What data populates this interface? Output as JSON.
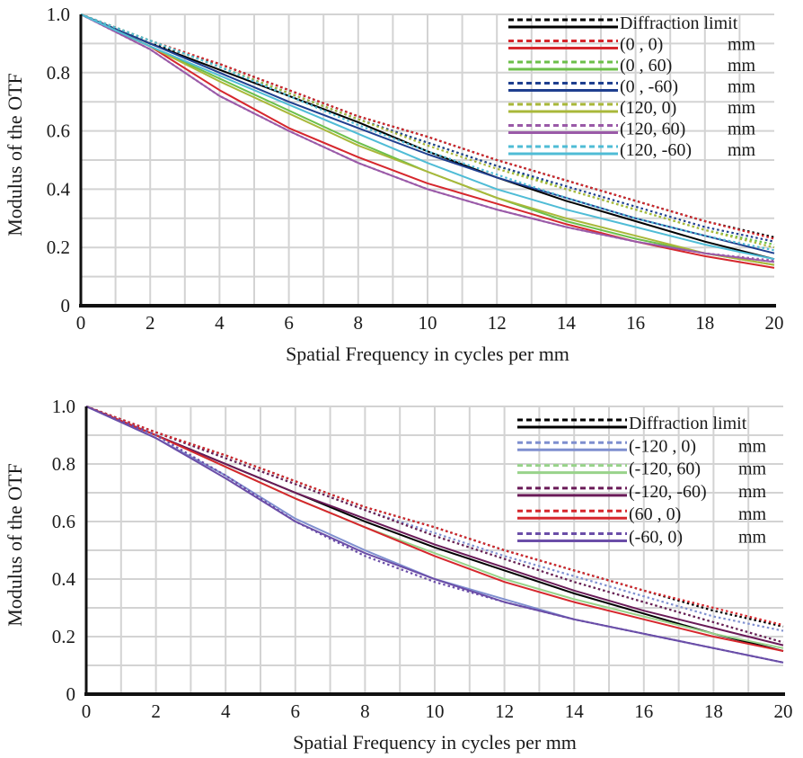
{
  "chart_data": [
    {
      "type": "line",
      "xlabel": "Spatial Frequency in cycles per mm",
      "ylabel": "Modulus of the OTF",
      "xlim": [
        0,
        20
      ],
      "ylim": [
        0,
        1.0
      ],
      "xticks": [
        "0",
        "2",
        "4",
        "6",
        "8",
        "10",
        "12",
        "14",
        "16",
        "18",
        "20"
      ],
      "yticks": [
        "0",
        "0.2",
        "0.4",
        "0.6",
        "0.8",
        "1.0"
      ],
      "grid": true,
      "legend_position": "top-right",
      "legend": [
        {
          "label": "Diffraction limit",
          "unit": "",
          "color": "#000000"
        },
        {
          "label": "(0 ,  0)",
          "unit": "mm",
          "color": "#d6272d"
        },
        {
          "label": "(0 ,  60)",
          "unit": "mm",
          "color": "#6cbf4a"
        },
        {
          "label": "(0 , -60)",
          "unit": "mm",
          "color": "#1f3f8f"
        },
        {
          "label": "(120, 0)",
          "unit": "mm",
          "color": "#a9b83a"
        },
        {
          "label": "(120, 60)",
          "unit": "mm",
          "color": "#9a5aa8"
        },
        {
          "label": "(120, -60)",
          "unit": "mm",
          "color": "#4fbcd6"
        }
      ],
      "x": [
        0,
        2,
        4,
        6,
        8,
        10,
        12,
        14,
        16,
        18,
        20
      ],
      "series": [
        {
          "name": "Diffraction limit",
          "style": "dotted",
          "color": "#000000",
          "values": [
            1.0,
            0.9,
            0.83,
            0.74,
            0.65,
            0.58,
            0.5,
            0.43,
            0.36,
            0.29,
            0.235
          ]
        },
        {
          "name": "Diffraction limit",
          "style": "solid",
          "color": "#000000",
          "values": [
            1.0,
            0.9,
            0.81,
            0.72,
            0.63,
            0.53,
            0.44,
            0.36,
            0.29,
            0.22,
            0.16
          ]
        },
        {
          "name": "(0 ,  0)",
          "style": "dotted",
          "color": "#d6272d",
          "values": [
            1.0,
            0.91,
            0.83,
            0.74,
            0.65,
            0.58,
            0.5,
            0.43,
            0.36,
            0.29,
            0.23
          ]
        },
        {
          "name": "(0 ,  0)",
          "style": "solid",
          "color": "#d6272d",
          "values": [
            1.0,
            0.89,
            0.74,
            0.61,
            0.51,
            0.42,
            0.35,
            0.28,
            0.22,
            0.17,
            0.13
          ]
        },
        {
          "name": "(0 ,  60)",
          "style": "dotted",
          "color": "#6cbf4a",
          "values": [
            1.0,
            0.91,
            0.82,
            0.73,
            0.64,
            0.56,
            0.48,
            0.4,
            0.33,
            0.26,
            0.21
          ]
        },
        {
          "name": "(0 ,  60)",
          "style": "solid",
          "color": "#6cbf4a",
          "values": [
            1.0,
            0.89,
            0.78,
            0.67,
            0.56,
            0.46,
            0.37,
            0.29,
            0.23,
            0.18,
            0.14
          ]
        },
        {
          "name": "(0 , -60)",
          "style": "dotted",
          "color": "#1f3f8f",
          "values": [
            1.0,
            0.91,
            0.82,
            0.73,
            0.64,
            0.56,
            0.48,
            0.41,
            0.34,
            0.27,
            0.22
          ]
        },
        {
          "name": "(0 , -60)",
          "style": "solid",
          "color": "#1f3f8f",
          "values": [
            1.0,
            0.9,
            0.8,
            0.7,
            0.61,
            0.52,
            0.44,
            0.37,
            0.3,
            0.24,
            0.18
          ]
        },
        {
          "name": "(120, 0)",
          "style": "dotted",
          "color": "#a9b83a",
          "values": [
            1.0,
            0.91,
            0.82,
            0.73,
            0.64,
            0.55,
            0.47,
            0.4,
            0.33,
            0.26,
            0.2
          ]
        },
        {
          "name": "(120, 0)",
          "style": "solid",
          "color": "#a9b83a",
          "values": [
            1.0,
            0.89,
            0.77,
            0.66,
            0.55,
            0.46,
            0.37,
            0.3,
            0.24,
            0.18,
            0.14
          ]
        },
        {
          "name": "(120, 60)",
          "style": "dotted",
          "color": "#9a5aa8",
          "values": [
            1.0,
            0.88,
            0.72,
            0.6,
            0.49,
            0.4,
            0.33,
            0.27,
            0.22,
            0.18,
            0.155
          ]
        },
        {
          "name": "(120, 60)",
          "style": "solid",
          "color": "#9a5aa8",
          "values": [
            1.0,
            0.88,
            0.72,
            0.6,
            0.49,
            0.4,
            0.33,
            0.27,
            0.22,
            0.18,
            0.15
          ]
        },
        {
          "name": "(120, -60)",
          "style": "dotted",
          "color": "#4fbcd6",
          "values": [
            1.0,
            0.91,
            0.82,
            0.72,
            0.62,
            0.53,
            0.45,
            0.37,
            0.3,
            0.24,
            0.19
          ]
        },
        {
          "name": "(120, -60)",
          "style": "solid",
          "color": "#4fbcd6",
          "values": [
            1.0,
            0.89,
            0.79,
            0.69,
            0.59,
            0.49,
            0.4,
            0.33,
            0.27,
            0.21,
            0.16
          ]
        }
      ]
    },
    {
      "type": "line",
      "xlabel": "Spatial Frequency in cycles per mm",
      "ylabel": "Modulus of the OTF",
      "xlim": [
        0,
        20
      ],
      "ylim": [
        0,
        1.0
      ],
      "xticks": [
        "0",
        "2",
        "4",
        "6",
        "8",
        "10",
        "12",
        "14",
        "16",
        "18",
        "20"
      ],
      "yticks": [
        "0",
        "0.2",
        "0.4",
        "0.6",
        "0.8",
        "1.0"
      ],
      "grid": true,
      "legend_position": "top-right",
      "legend": [
        {
          "label": "Diffraction limit",
          "unit": "",
          "color": "#000000"
        },
        {
          "label": "(-120 , 0)",
          "unit": "mm",
          "color": "#7f8fcf"
        },
        {
          "label": "(-120, 60)",
          "unit": "mm",
          "color": "#98d38a"
        },
        {
          "label": "(-120, -60)",
          "unit": "mm",
          "color": "#6a1b58"
        },
        {
          "label": "(60 ,  0)",
          "unit": "mm",
          "color": "#d6272d"
        },
        {
          "label": "(-60,  0)",
          "unit": "mm",
          "color": "#6b4ea8"
        }
      ],
      "x": [
        0,
        2,
        4,
        6,
        8,
        10,
        12,
        14,
        16,
        18,
        20
      ],
      "series": [
        {
          "name": "Diffraction limit",
          "style": "dotted",
          "color": "#000000",
          "values": [
            1.0,
            0.91,
            0.83,
            0.74,
            0.65,
            0.58,
            0.5,
            0.43,
            0.36,
            0.29,
            0.235
          ]
        },
        {
          "name": "Diffraction limit",
          "style": "solid",
          "color": "#000000",
          "values": [
            1.0,
            0.9,
            0.8,
            0.7,
            0.6,
            0.51,
            0.43,
            0.35,
            0.28,
            0.21,
            0.15
          ]
        },
        {
          "name": "(-120 , 0)",
          "style": "dotted",
          "color": "#7f8fcf",
          "values": [
            1.0,
            0.91,
            0.82,
            0.73,
            0.64,
            0.56,
            0.48,
            0.41,
            0.34,
            0.27,
            0.22
          ]
        },
        {
          "name": "(-120 , 0)",
          "style": "solid",
          "color": "#7f8fcf",
          "values": [
            1.0,
            0.89,
            0.76,
            0.61,
            0.5,
            0.4,
            0.33,
            0.26,
            0.21,
            0.16,
            0.11
          ]
        },
        {
          "name": "(-120, 60)",
          "style": "dotted",
          "color": "#98d38a",
          "values": [
            1.0,
            0.91,
            0.82,
            0.73,
            0.64,
            0.55,
            0.47,
            0.39,
            0.32,
            0.25,
            0.18
          ]
        },
        {
          "name": "(-120, 60)",
          "style": "solid",
          "color": "#98d38a",
          "values": [
            1.0,
            0.9,
            0.79,
            0.68,
            0.58,
            0.49,
            0.4,
            0.33,
            0.27,
            0.21,
            0.16
          ]
        },
        {
          "name": "(-120, -60)",
          "style": "dotted",
          "color": "#6a1b58",
          "values": [
            1.0,
            0.91,
            0.82,
            0.73,
            0.64,
            0.55,
            0.47,
            0.39,
            0.32,
            0.25,
            0.18
          ]
        },
        {
          "name": "(-120, -60)",
          "style": "solid",
          "color": "#6a1b58",
          "values": [
            1.0,
            0.9,
            0.8,
            0.7,
            0.61,
            0.52,
            0.44,
            0.36,
            0.29,
            0.23,
            0.17
          ]
        },
        {
          "name": "(60 ,  0)",
          "style": "dotted",
          "color": "#d6272d",
          "values": [
            1.0,
            0.91,
            0.83,
            0.74,
            0.65,
            0.58,
            0.5,
            0.43,
            0.36,
            0.3,
            0.24
          ]
        },
        {
          "name": "(60 ,  0)",
          "style": "solid",
          "color": "#d6272d",
          "values": [
            1.0,
            0.9,
            0.79,
            0.68,
            0.58,
            0.48,
            0.39,
            0.32,
            0.26,
            0.2,
            0.15
          ]
        },
        {
          "name": "(-60,  0)",
          "style": "dotted",
          "color": "#6b4ea8",
          "values": [
            1.0,
            0.9,
            0.76,
            0.6,
            0.48,
            0.39,
            0.32,
            0.26,
            0.21,
            0.16,
            0.11
          ]
        },
        {
          "name": "(-60,  0)",
          "style": "solid",
          "color": "#6b4ea8",
          "values": [
            1.0,
            0.89,
            0.75,
            0.6,
            0.49,
            0.4,
            0.32,
            0.26,
            0.21,
            0.16,
            0.11
          ]
        }
      ]
    }
  ]
}
